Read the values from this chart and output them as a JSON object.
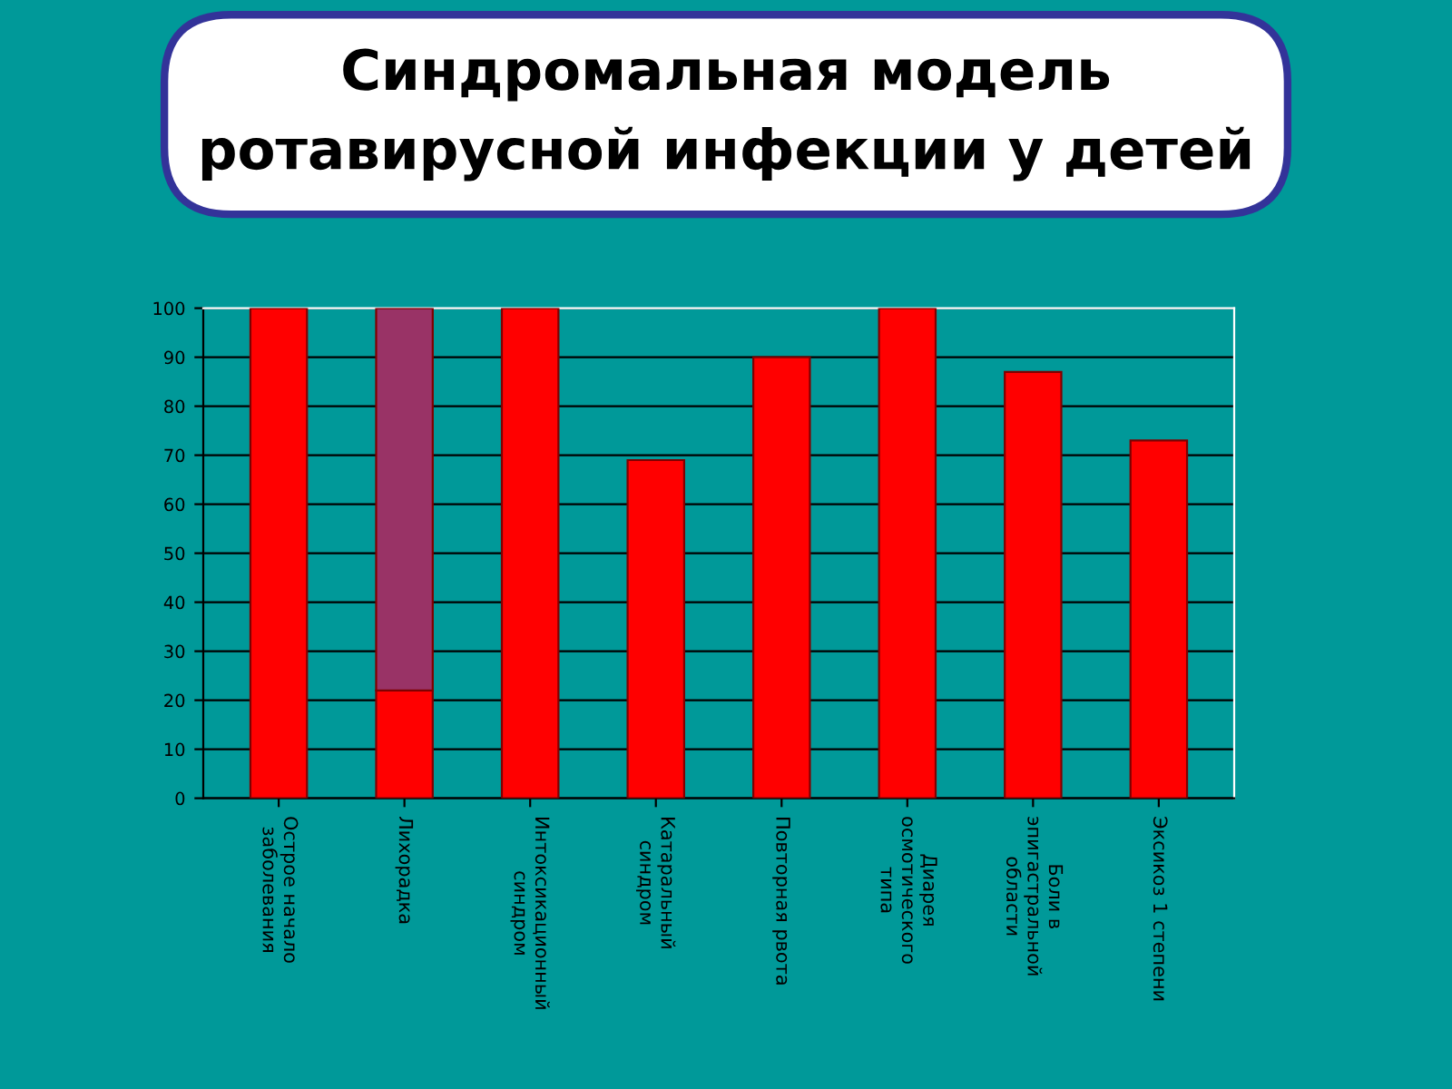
{
  "chart_data": {
    "type": "bar",
    "title": "Синдромальная модель\nротавирусной инфекции у детей",
    "categories": [
      "Острое начало\nзаболевания",
      "Лихорадка",
      "Интоксикационный\nсиндром",
      "Катаральный\nсиндром",
      "Повторная рвота",
      "Диарея\nосмотического\nтипа",
      "Боли в\nэпигастральной\nобласти",
      "Эксикоз 1 степени"
    ],
    "stacked": true,
    "series": [
      {
        "color": "#ff0000",
        "values": [
          100,
          22,
          100,
          69,
          90,
          100,
          87,
          73
        ]
      },
      {
        "color": "#993366",
        "values": [
          null,
          78,
          null,
          null,
          null,
          null,
          null,
          null
        ]
      }
    ],
    "ylim": [
      0,
      100
    ],
    "yticks": [
      0,
      10,
      20,
      30,
      40,
      50,
      60,
      70,
      80,
      90,
      100
    ],
    "grid": "y",
    "legend": false
  }
}
